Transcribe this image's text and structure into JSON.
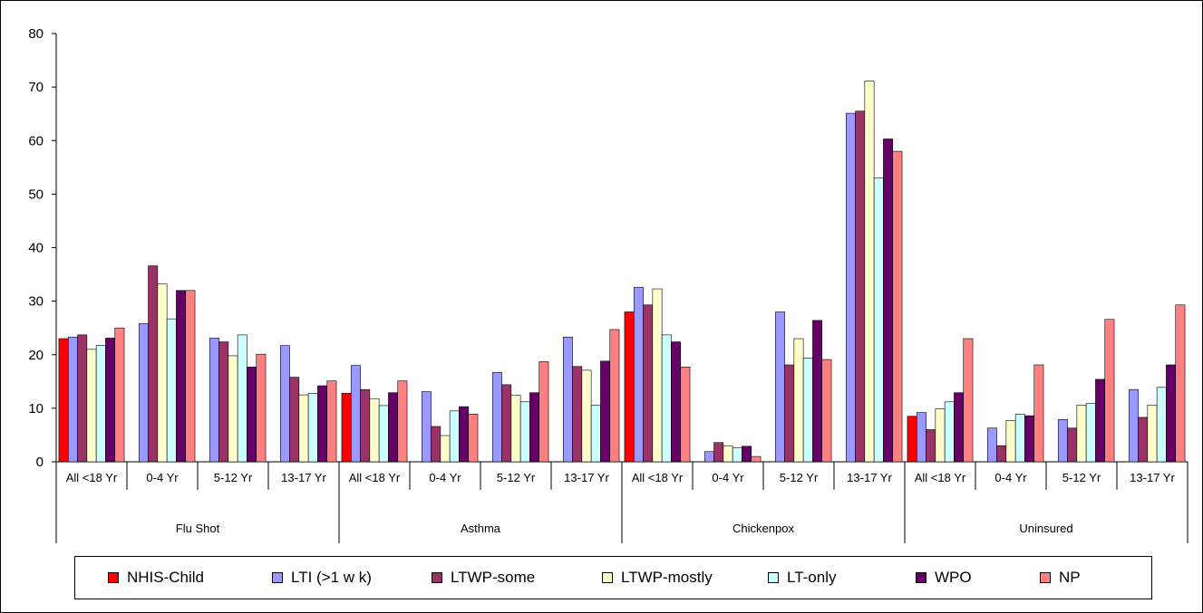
{
  "chart_data": {
    "type": "bar",
    "ylim": [
      0,
      80
    ],
    "yticks": [
      "0",
      "10",
      "20",
      "30",
      "40",
      "50",
      "60",
      "70",
      "80"
    ],
    "groups": [
      "Flu Shot",
      "Asthma",
      "Chickenpox",
      "Uninsured"
    ],
    "subcategories": [
      "All <18 Yr",
      "0-4 Yr",
      "5-12 Yr",
      "13-17 Yr"
    ],
    "legend_position": "bottom",
    "grid": false,
    "series": [
      {
        "name": "NHIS-Child",
        "color": "#ff0000",
        "values": [
          23,
          null,
          null,
          null,
          12.8,
          null,
          null,
          null,
          28,
          null,
          null,
          null,
          8.5,
          null,
          null,
          null
        ]
      },
      {
        "name": "LTI (>1 w k)",
        "color": "#9999ff",
        "values": [
          23.3,
          25.8,
          23.1,
          21.7,
          18,
          13.1,
          16.7,
          23.3,
          32.6,
          1.9,
          28,
          65.1,
          9.2,
          6.3,
          7.9,
          13.5
        ]
      },
      {
        "name": "LTWP-some",
        "color": "#993366",
        "values": [
          23.7,
          36.6,
          22.4,
          15.8,
          13.5,
          6.6,
          14.4,
          17.8,
          29.3,
          3.6,
          18.1,
          65.5,
          6,
          3,
          6.3,
          8.3
        ]
      },
      {
        "name": "LTWP-mostly",
        "color": "#ffffcc",
        "values": [
          21,
          33.2,
          19.8,
          12.5,
          11.8,
          4.9,
          12.4,
          17.1,
          32.3,
          3,
          23,
          71.1,
          9.9,
          7.7,
          10.6,
          10.6
        ]
      },
      {
        "name": "LT-only",
        "color": "#ccffff",
        "values": [
          21.7,
          26.7,
          23.7,
          12.8,
          10.5,
          9.5,
          11.2,
          10.6,
          23.7,
          2.6,
          19.4,
          53,
          11.2,
          8.9,
          10.9,
          13.9
        ]
      },
      {
        "name": "WPO",
        "color": "#660066",
        "values": [
          23.1,
          32,
          17.7,
          14.2,
          12.9,
          10.3,
          12.9,
          18.8,
          22.4,
          2.9,
          26.4,
          60.3,
          12.9,
          8.6,
          15.4,
          18.1
        ]
      },
      {
        "name": "NP",
        "color": "#ff8080",
        "values": [
          25,
          32,
          20.1,
          15.1,
          15.1,
          8.9,
          18.7,
          24.7,
          17.7,
          1,
          19.1,
          58,
          23,
          18.1,
          26.6,
          29.3
        ]
      }
    ]
  }
}
